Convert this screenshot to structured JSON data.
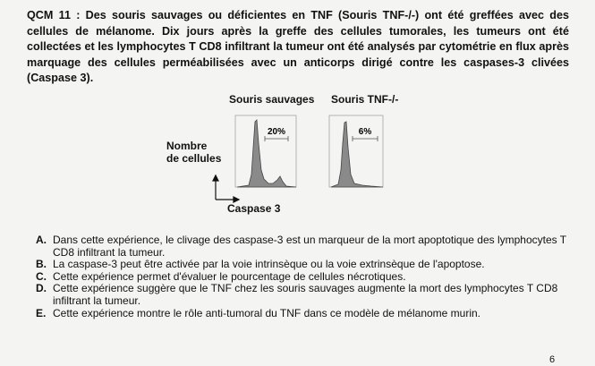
{
  "question": {
    "title": "QCM 11 :",
    "text": "Des souris sauvages ou déficientes en TNF (Souris TNF-/-) ont été greffées avec des cellules de mélanome. Dix jours après la greffe des cellules tumorales, les tumeurs ont été collectées et les lymphocytes T CD8 infiltrant la tumeur ont été analysés par cytométrie en flux après marquage des cellules perméabilisées avec un anticorps dirigé contre les caspases-3 clivées (Caspase 3)."
  },
  "figure": {
    "panel_wt": {
      "title": "Souris sauvages",
      "gate_percent": "20%"
    },
    "panel_ko": {
      "title": "Souris TNF-/-",
      "gate_percent": "6%"
    },
    "ylabel_line1": "Nombre",
    "ylabel_line2": "de cellules",
    "xlabel": "Caspase 3"
  },
  "answers": [
    {
      "letter": "A.",
      "text": "Dans cette expérience, le clivage des caspase-3 est un marqueur de la mort apoptotique des lymphocytes T CD8 infiltrant la tumeur."
    },
    {
      "letter": "B.",
      "text": "La caspase-3 peut être activée par la voie intrinsèque ou la voie extrinsèque de l'apoptose."
    },
    {
      "letter": "C.",
      "text": "Cette expérience permet d'évaluer le pourcentage de cellules nécrotiques."
    },
    {
      "letter": "D.",
      "text": "Cette expérience suggère que le TNF chez les souris sauvages augmente la mort des lymphocytes T CD8 infiltrant la tumeur."
    },
    {
      "letter": "E.",
      "text": "Cette expérience montre le rôle anti-tumoral du TNF dans ce modèle de mélanome murin."
    }
  ],
  "page_number": "6"
}
